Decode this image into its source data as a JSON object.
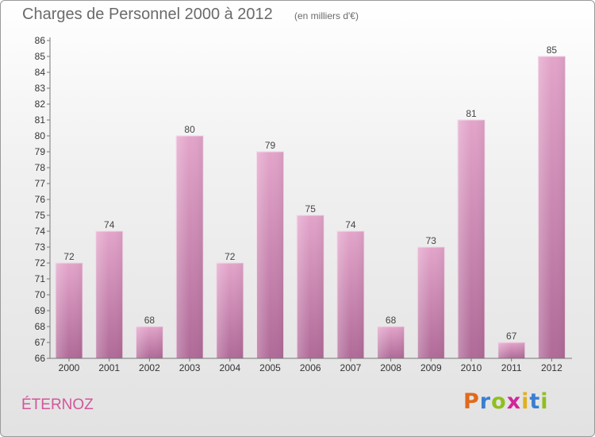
{
  "chart_title": "Charges de Personnel 2000 à 2012",
  "chart_unit": "(en milliers d'€)",
  "commune": "ÉTERNOZ",
  "logo": {
    "letters": [
      "P",
      "r",
      "o",
      "x",
      "i",
      "t",
      "i"
    ],
    "colors": [
      "#e06a1a",
      "#3a7fd0",
      "#8fbf20",
      "#d3259a",
      "#e0b020",
      "#3a7fd0",
      "#8fbf20"
    ]
  },
  "colors": {
    "bar_top": "#e3a4ca",
    "bar_bottom": "#b06a98",
    "accent": "#d3559a"
  },
  "chart_data": {
    "type": "bar",
    "title": "Charges de Personnel 2000 à 2012",
    "categories": [
      "2000",
      "2001",
      "2002",
      "2003",
      "2004",
      "2005",
      "2006",
      "2007",
      "2008",
      "2009",
      "2010",
      "2011",
      "2012"
    ],
    "values": [
      72,
      74,
      68,
      80,
      72,
      79,
      75,
      74,
      68,
      73,
      81,
      67,
      85
    ],
    "ylim": [
      66,
      86
    ],
    "yticks": [
      66,
      67,
      68,
      69,
      70,
      71,
      72,
      73,
      74,
      75,
      76,
      77,
      78,
      79,
      80,
      81,
      82,
      83,
      84,
      85,
      86
    ],
    "grid": false
  }
}
